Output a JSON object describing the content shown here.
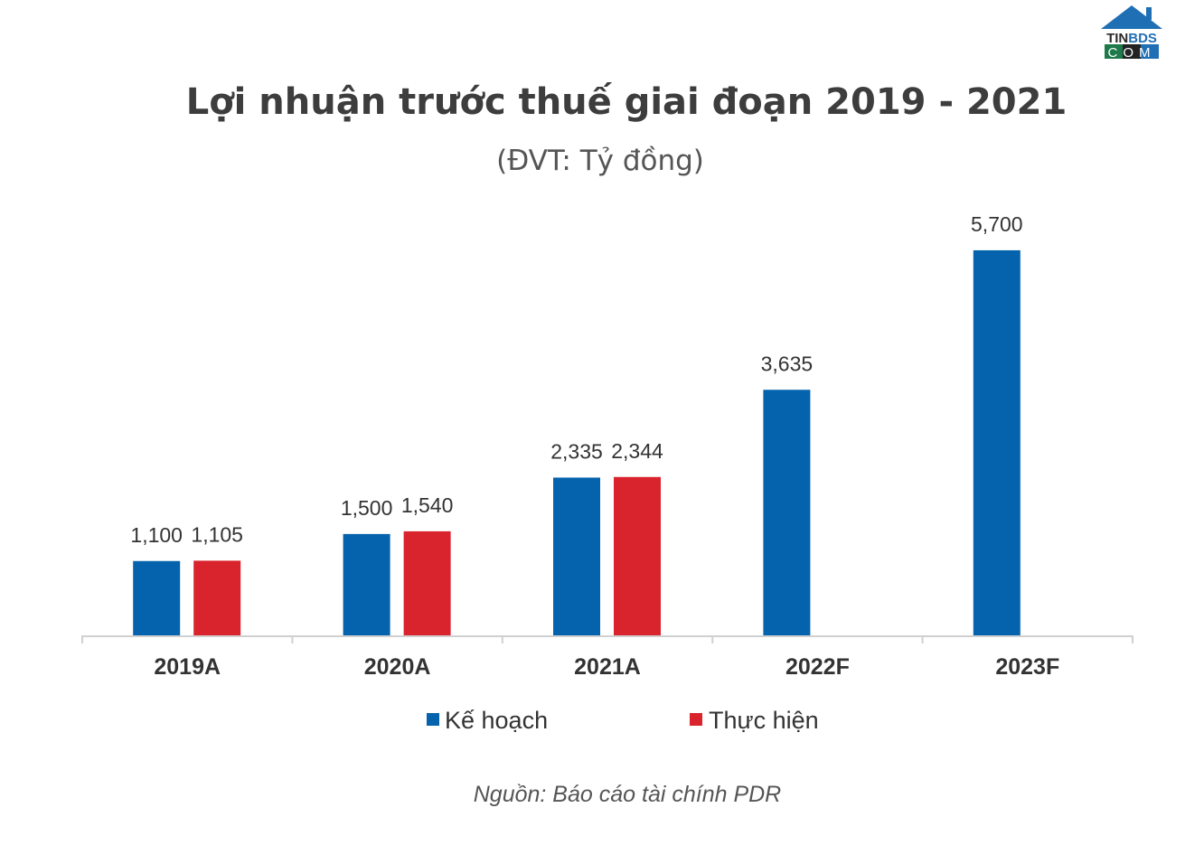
{
  "logo": {
    "text_top": "TINBDS",
    "text_bottom": "COM"
  },
  "chart_data": {
    "type": "bar",
    "title": "Lợi nhuận trước thuế giai đoạn 2019 - 2021",
    "subtitle": "(ĐVT: Tỷ đồng)",
    "categories": [
      "2019A",
      "2020A",
      "2021A",
      "2022F",
      "2023F"
    ],
    "series": [
      {
        "name": "Kế hoạch",
        "color": "#0563ad",
        "values": [
          1100,
          1500,
          2335,
          3635,
          5700
        ],
        "labels": [
          "1,100",
          "1,500",
          "2,335",
          "3,635",
          "5,700"
        ]
      },
      {
        "name": "Thực hiện",
        "color": "#d9232d",
        "values": [
          1105,
          1540,
          2344,
          null,
          null
        ],
        "labels": [
          "1,105",
          "1,540",
          "2,344",
          "",
          ""
        ]
      }
    ],
    "ylim": [
      0,
      6000
    ],
    "grid": false,
    "legend": "bottom",
    "source": "Nguồn: Báo cáo tài chính PDR"
  }
}
